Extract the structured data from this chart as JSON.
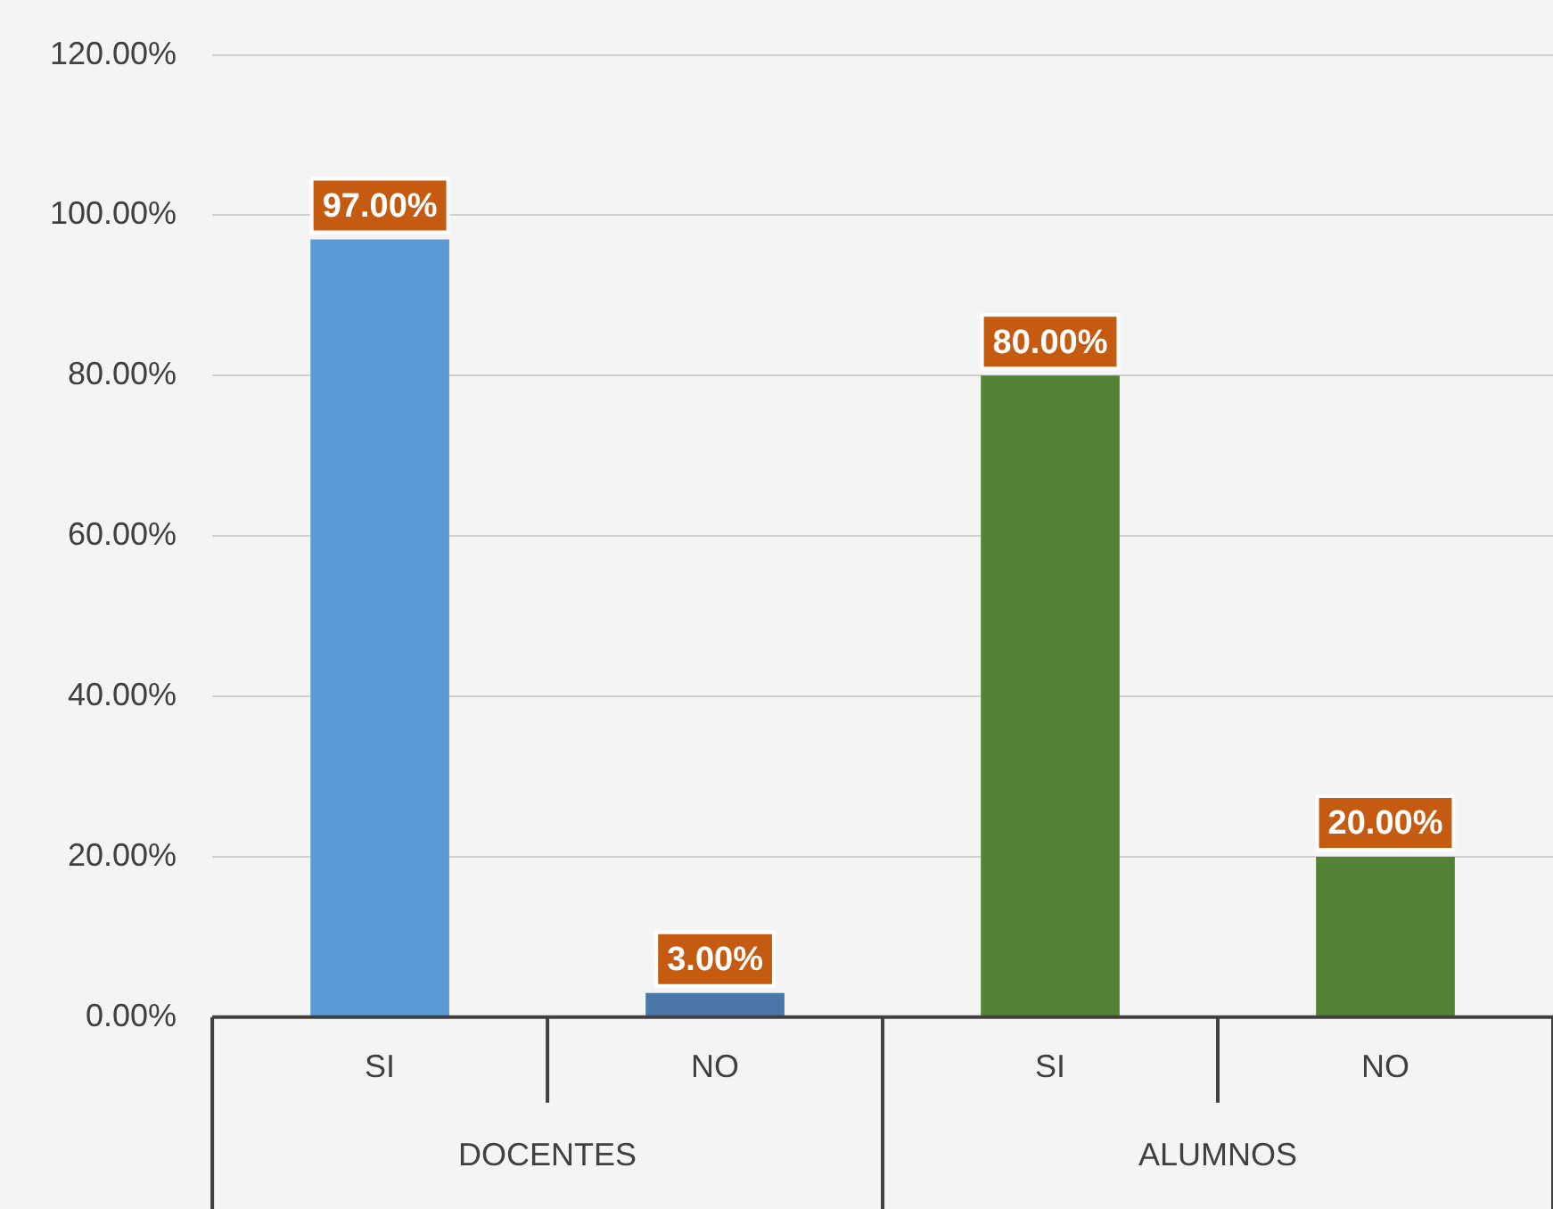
{
  "chart_data": {
    "type": "bar",
    "categories": [
      "SI",
      "NO",
      "SI",
      "NO"
    ],
    "values": [
      97,
      3,
      80,
      20
    ],
    "colors": [
      "#5b9bd5",
      "#4a76a8",
      "#548235",
      "#548235"
    ],
    "value_labels": [
      "97.00%",
      "3.00%",
      "80.00%",
      "20.00%"
    ],
    "annotations": [
      "DOCENTES",
      "ALUMNOS"
    ],
    "ylim": [
      0,
      120
    ],
    "yticks": [
      {
        "value": 0,
        "label": "0.00%"
      },
      {
        "value": 20,
        "label": "20.00%"
      },
      {
        "value": 40,
        "label": "40.00%"
      },
      {
        "value": 60,
        "label": "60.00%"
      },
      {
        "value": 80,
        "label": "80.00%"
      },
      {
        "value": 100,
        "label": "100.00%"
      },
      {
        "value": 120,
        "label": "120.00%"
      }
    ],
    "grid": "y",
    "legend": false
  }
}
